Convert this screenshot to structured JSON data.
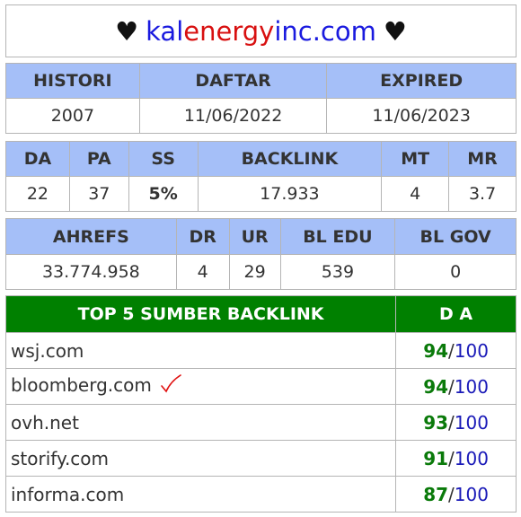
{
  "header": {
    "heart_left": "♥",
    "domain_part1": "kal",
    "domain_part2": "energy",
    "domain_part3": "inc.com",
    "heart_right": "♥"
  },
  "history_table": {
    "headers": [
      "HISTORI",
      "DAFTAR",
      "EXPIRED"
    ],
    "values": [
      "2007",
      "11/06/2022",
      "11/06/2023"
    ]
  },
  "metrics_table": {
    "headers": [
      "DA",
      "PA",
      "SS",
      "BACKLINK",
      "MT",
      "MR"
    ],
    "values": [
      "22",
      "37",
      "5%",
      "17.933",
      "4",
      "3.7"
    ]
  },
  "ahrefs_table": {
    "headers": [
      "AHREFS",
      "DR",
      "UR",
      "BL EDU",
      "BL GOV"
    ],
    "values": [
      "33.774.958",
      "4",
      "29",
      "539",
      "0"
    ]
  },
  "backlinks_table": {
    "header_source": "TOP 5 SUMBER BACKLINK",
    "header_da": "D A",
    "rows": [
      {
        "site": "wsj.com",
        "da": "94",
        "slash": "/",
        "max": "100"
      },
      {
        "site": "bloomberg.com",
        "da": "94",
        "slash": "/",
        "max": "100"
      },
      {
        "site": "ovh.net",
        "da": "93",
        "slash": "/",
        "max": "100"
      },
      {
        "site": "storify.com",
        "da": "91",
        "slash": "/",
        "max": "100"
      },
      {
        "site": "informa.com",
        "da": "87",
        "slash": "/",
        "max": "100"
      }
    ]
  },
  "colors": {
    "header_bg": "#a5bff8",
    "green_header": "#008000",
    "domain_blue": "#1a1adf",
    "domain_red": "#d81010",
    "da_green": "#0a7a0a"
  },
  "icons": {
    "bloomberg_mark": "check-icon"
  }
}
